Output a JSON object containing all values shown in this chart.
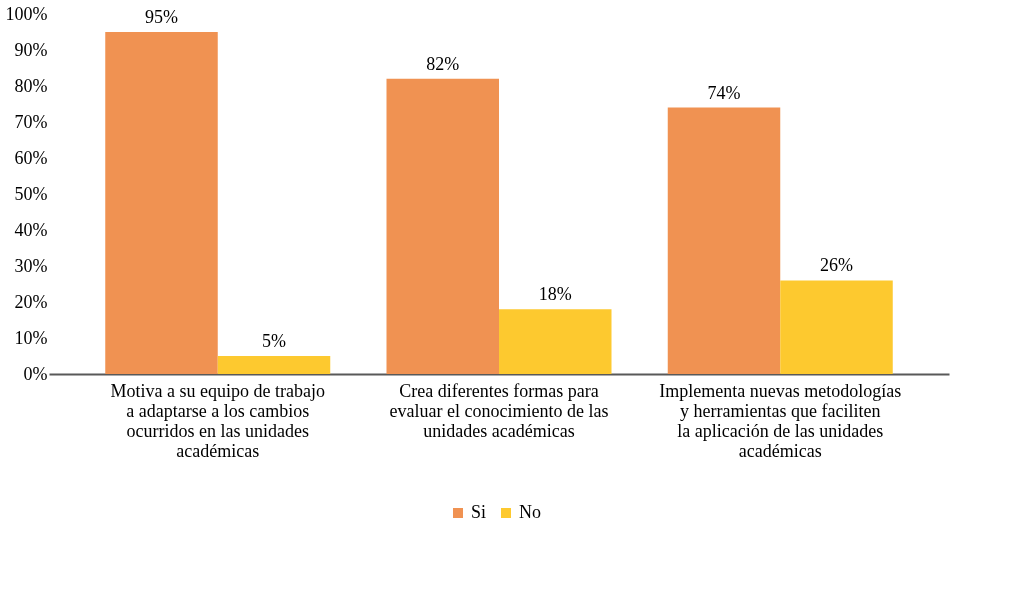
{
  "chart_data": {
    "type": "bar",
    "categories": [
      "Motiva a su equipo de trabajo a adaptarse a los cambios ocurridos en las unidades académicas",
      "Crea diferentes formas para evaluar el conocimiento de las unidades académicas",
      "Implementa nuevas metodologías y herramientas que faciliten la aplicación de las unidades académicas"
    ],
    "series": [
      {
        "name": "Si",
        "color": "#f09252",
        "values": [
          95,
          82,
          74
        ],
        "value_labels": [
          "95%",
          "82%",
          "74%"
        ]
      },
      {
        "name": "No",
        "color": "#fdc92f",
        "values": [
          5,
          18,
          26
        ],
        "value_labels": [
          "5%",
          "18%",
          "26%"
        ]
      }
    ],
    "ylim": [
      0,
      100
    ],
    "yticks": [
      {
        "value": 0,
        "label": "0%"
      },
      {
        "value": 10,
        "label": "10%"
      },
      {
        "value": 20,
        "label": "20%"
      },
      {
        "value": 30,
        "label": "30%"
      },
      {
        "value": 40,
        "label": "40%"
      },
      {
        "value": 50,
        "label": "50%"
      },
      {
        "value": 60,
        "label": "60%"
      },
      {
        "value": 70,
        "label": "70%"
      },
      {
        "value": 80,
        "label": "80%"
      },
      {
        "value": 90,
        "label": "90%"
      },
      {
        "value": 100,
        "label": "100%"
      }
    ],
    "grid": false,
    "legend": "bottom"
  }
}
